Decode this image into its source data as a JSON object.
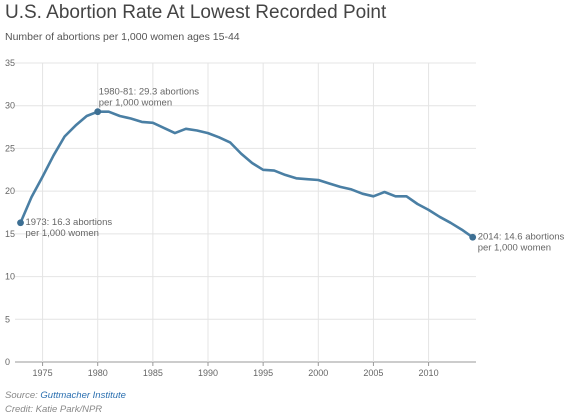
{
  "header": {
    "title": "U.S. Abortion Rate At Lowest Recorded Point",
    "subtitle": "Number of abortions per 1,000 women ages 15-44"
  },
  "footer": {
    "source_label": "Source: ",
    "source_link": "Guttmacher Institute",
    "credit": "Credit: Katie Park/NPR"
  },
  "colors": {
    "line": "#4a7fa4",
    "point": "#3d6f93",
    "grid": "#e4e4e4",
    "axis": "#999999",
    "text": "#666666"
  },
  "chart_data": {
    "type": "line",
    "title": "U.S. Abortion Rate At Lowest Recorded Point",
    "subtitle": "Number of abortions per 1,000 women ages 15-44",
    "xlim": [
      1972.5,
      2014.3
    ],
    "ylim": [
      0,
      35
    ],
    "xticks": [
      1975,
      1980,
      1985,
      1990,
      1995,
      2000,
      2005,
      2010
    ],
    "yticks": [
      0,
      5,
      10,
      15,
      20,
      25,
      30,
      35
    ],
    "grid": true,
    "series": [
      {
        "x": [
          1973,
          1974,
          1975,
          1976,
          1977,
          1978,
          1979,
          1980,
          1981,
          1982,
          1983,
          1984,
          1985,
          1986,
          1987,
          1988,
          1989,
          1990,
          1991,
          1992,
          1993,
          1994,
          1995,
          1996,
          1997,
          1998,
          1999,
          2000,
          2001,
          2002,
          2003,
          2004,
          2005,
          2006,
          2007,
          2008,
          2009,
          2010,
          2011,
          2012,
          2013,
          2014
        ],
        "y": [
          16.3,
          19.3,
          21.7,
          24.2,
          26.4,
          27.7,
          28.8,
          29.3,
          29.3,
          28.8,
          28.5,
          28.1,
          28.0,
          27.4,
          26.8,
          27.3,
          27.1,
          26.8,
          26.3,
          25.7,
          24.4,
          23.3,
          22.5,
          22.4,
          21.9,
          21.5,
          21.4,
          21.3,
          20.9,
          20.5,
          20.2,
          19.7,
          19.4,
          19.9,
          19.4,
          19.4,
          18.5,
          17.8,
          17.0,
          16.3,
          15.5,
          14.6
        ]
      }
    ],
    "annotations": [
      {
        "x": 1973,
        "y": 16.3,
        "lines": [
          "1973: 16.3 abortions",
          "per 1,000 women"
        ],
        "anchor": "right-of-point"
      },
      {
        "x": 1980,
        "y": 29.3,
        "lines": [
          "1980-81: 29.3 abortions",
          "per 1,000 women"
        ],
        "anchor": "above-point"
      },
      {
        "x": 2014,
        "y": 14.6,
        "lines": [
          "2014: 14.6 abortions",
          "per 1,000 women"
        ],
        "anchor": "right-of-point"
      }
    ]
  }
}
